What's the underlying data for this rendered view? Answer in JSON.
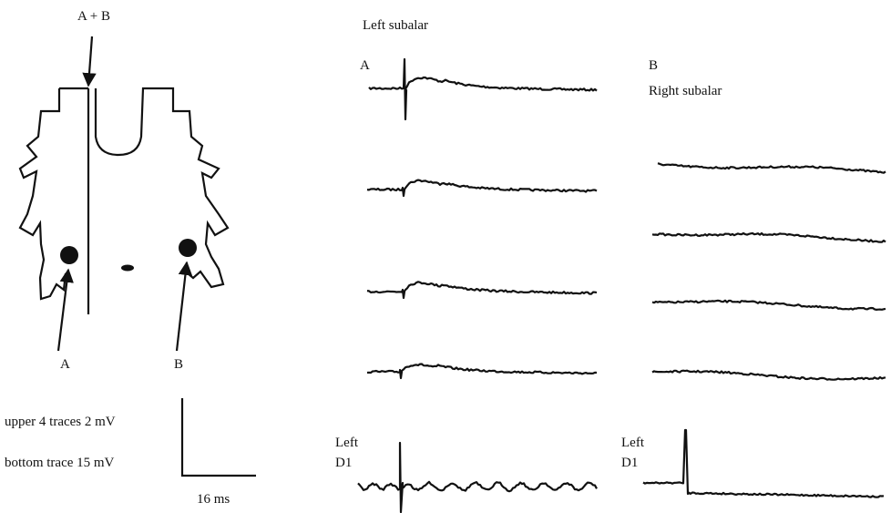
{
  "figure": {
    "diagram": {
      "top_label": "A + B",
      "left_label": "A",
      "right_label": "B"
    },
    "column_a": {
      "header": "Left subalar",
      "label": "A"
    },
    "column_b": {
      "label": "B",
      "header": "Right subalar"
    },
    "scale": {
      "upper": "upper 4 traces 2 mV",
      "bottom": "bottom trace 15 mV",
      "time": "16 ms"
    },
    "d1_a": {
      "lines": [
        "Left",
        "D1"
      ]
    },
    "d1_b": {
      "lines": [
        "Left",
        "D1"
      ]
    }
  }
}
